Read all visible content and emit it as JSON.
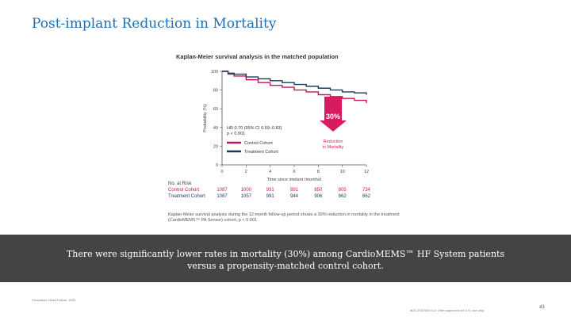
{
  "slide": {
    "title": "Post-implant Reduction in Mortality",
    "banner_line1": "There were significantly lower rates in mortality (30%) among CardioMEMS™ HF System patients",
    "banner_line2": "versus a propensity-matched control cohort.",
    "footer_left": "Circulation: Heart Failure. 2020",
    "footer_right": "MAT-2007000 v1.0 | Item approved for U.S. use only.",
    "page_number": "43"
  },
  "chart_data": {
    "type": "line",
    "title": "Kaplan-Meier survival analysis in the matched population",
    "xlabel": "Time since implant (months)",
    "ylabel": "Probability (%)",
    "xlim": [
      0,
      12
    ],
    "ylim": [
      0,
      100
    ],
    "xticks": [
      "0",
      "2",
      "4",
      "6",
      "8",
      "10",
      "12"
    ],
    "yticks": [
      "0",
      "20",
      "40",
      "60",
      "80",
      "100"
    ],
    "series": [
      {
        "name": "Control Cohort",
        "color": "#c2185b",
        "x": [
          0,
          0.5,
          1,
          2,
          3,
          4,
          5,
          6,
          7,
          8,
          9,
          10,
          11,
          12
        ],
        "y": [
          100,
          97,
          95,
          91,
          88,
          85,
          83,
          80,
          78,
          75,
          73,
          71,
          69,
          66
        ]
      },
      {
        "name": "Treatment Cohort",
        "color": "#1a3a5c",
        "x": [
          0,
          0.5,
          1,
          2,
          3,
          4,
          5,
          6,
          7,
          8,
          9,
          10,
          11,
          12
        ],
        "y": [
          100,
          98,
          97,
          94,
          92,
          90,
          88,
          86,
          84,
          82,
          80,
          78,
          77,
          75
        ]
      }
    ],
    "annotation_hr": "HR 0.70 (95% CI 0.59–0.83)",
    "annotation_p": "p < 0.001",
    "callout_value": "30%",
    "callout_line1": "Reduction",
    "callout_line2": "in Mortality",
    "callout_color": "#d81b60",
    "risk_table": {
      "header": "No. at Risk",
      "months": [
        0,
        2,
        4,
        6,
        8,
        10,
        12
      ],
      "rows": [
        {
          "label": "Control Cohort",
          "color": "#c2185b",
          "values": [
            "1087",
            "1000",
            "931",
            "891",
            "850",
            "805",
            "734"
          ]
        },
        {
          "label": "Treatment Cohort",
          "color": "#1a3a5c",
          "values": [
            "1087",
            "1057",
            "991",
            "944",
            "906",
            "862",
            "862"
          ]
        }
      ]
    },
    "caption": "Kaplan-Meier survival analysis during the 12-month follow-up period shows a 30% reduction in mortality in the treatment (CardioMEMS™ PA Sensor) cohort, p < 0.001"
  }
}
